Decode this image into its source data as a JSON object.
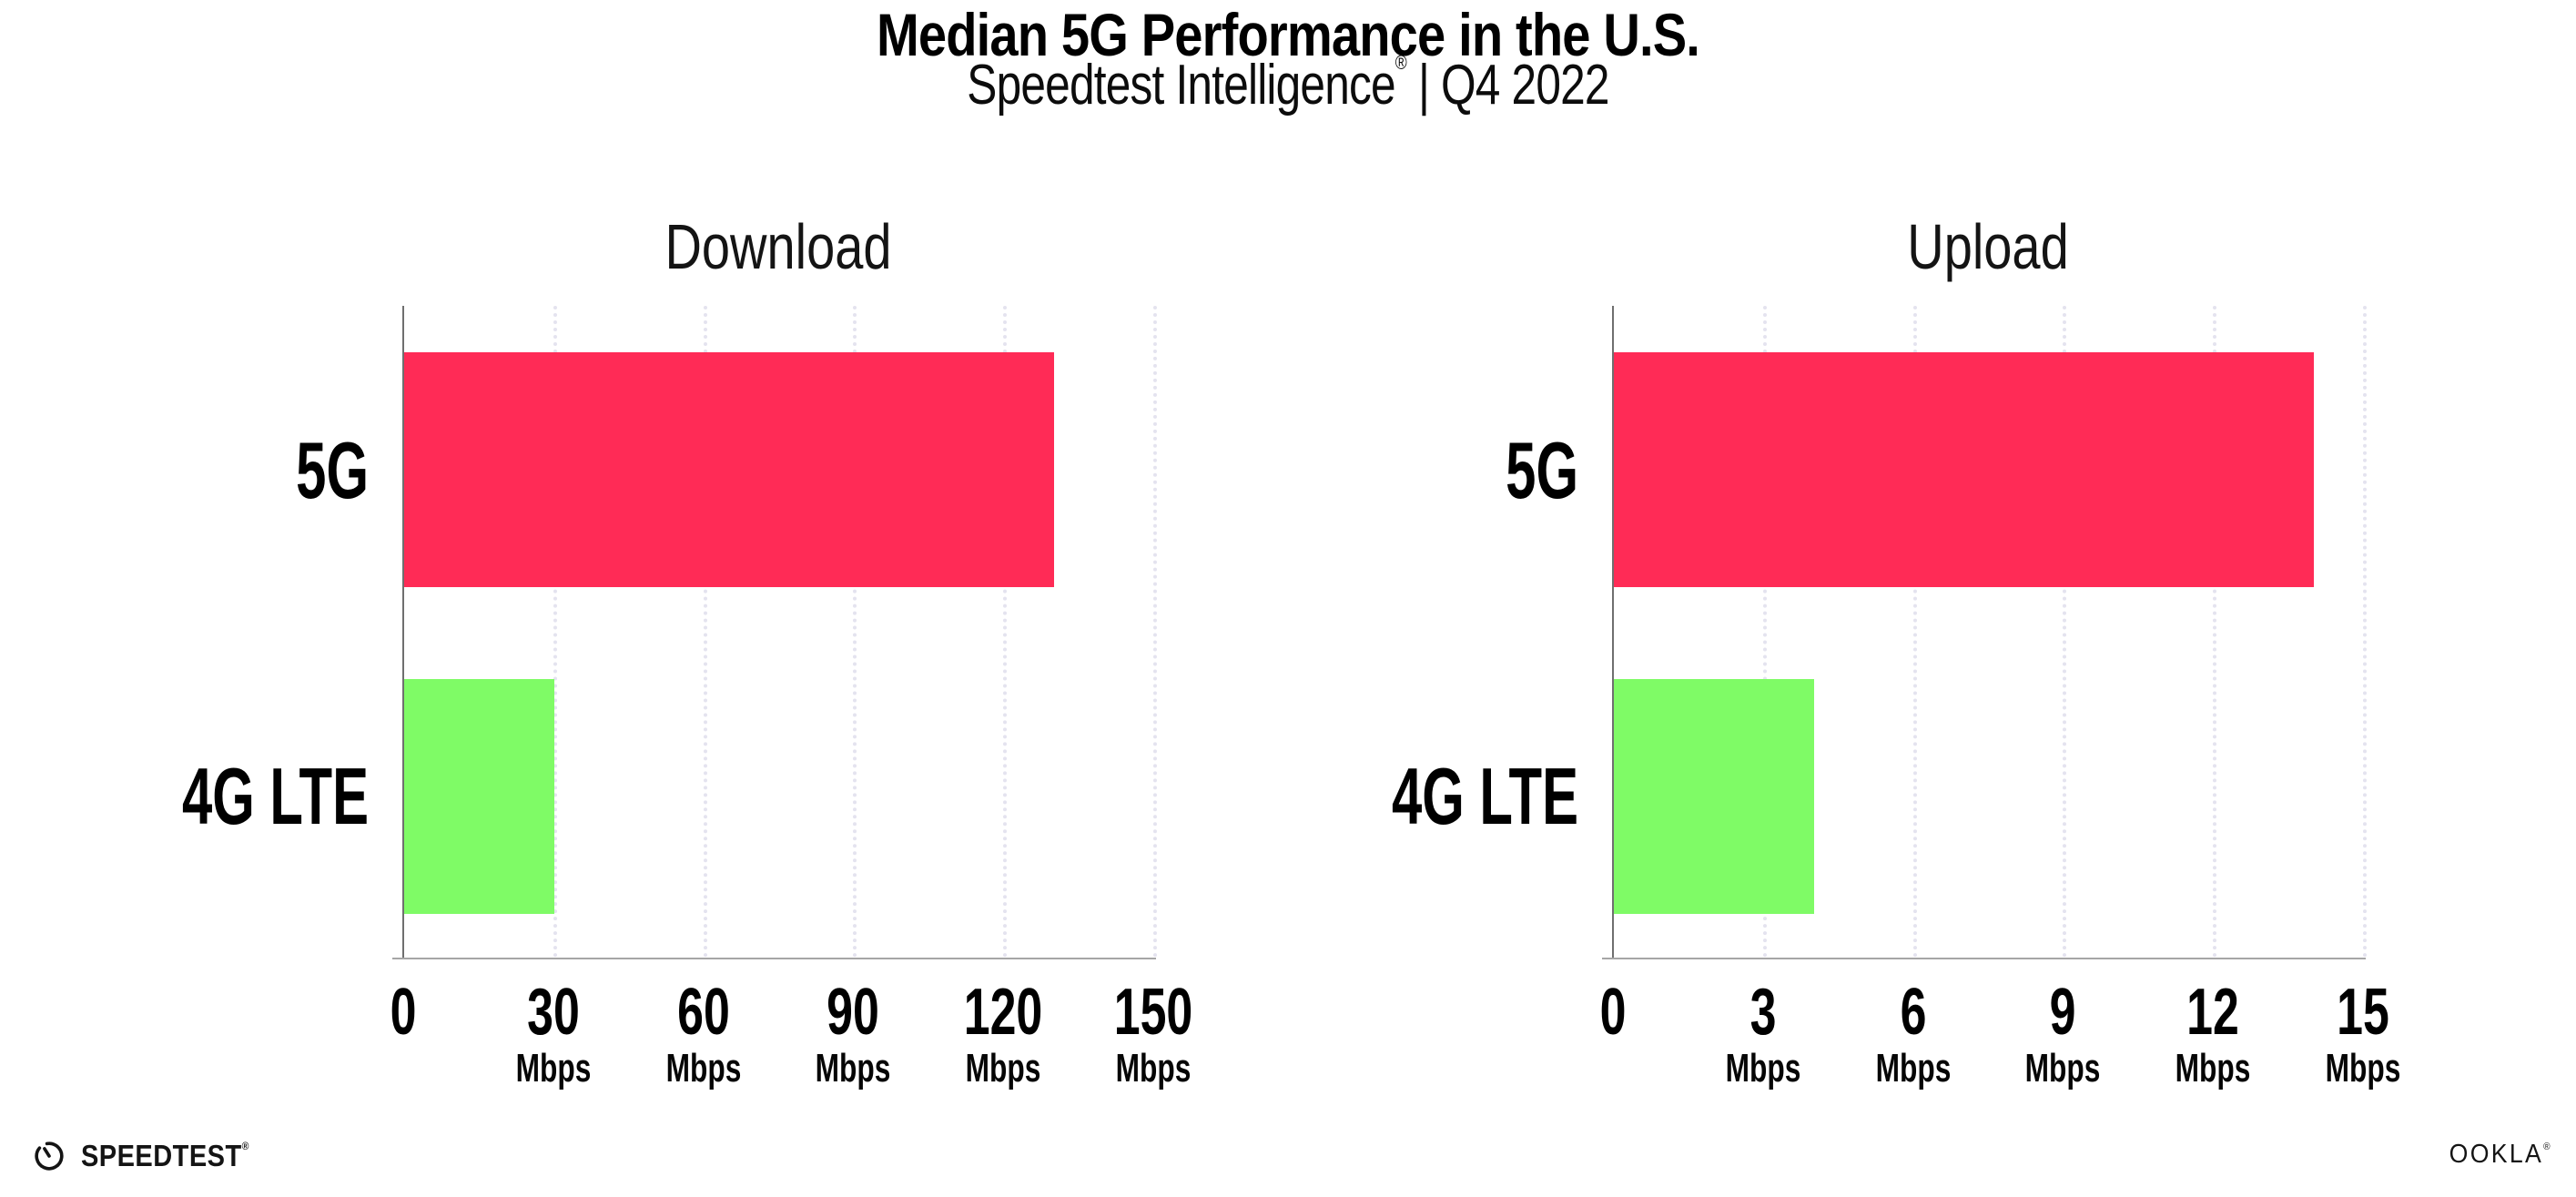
{
  "header": {
    "title": "Median 5G Performance in the U.S.",
    "subtitle_brand": "Speedtest Intelligence",
    "subtitle_reg": "®",
    "subtitle_rest": " | Q4 2022"
  },
  "chart_data": [
    {
      "type": "bar",
      "orientation": "horizontal",
      "title": "Download",
      "categories": [
        "5G",
        "4G LTE"
      ],
      "values": [
        130,
        30
      ],
      "unit": "Mbps",
      "xlim": [
        0,
        150
      ],
      "xticks": [
        0,
        30,
        60,
        90,
        120,
        150
      ],
      "bar_colors": [
        "#FF2B56",
        "#7FFB66"
      ],
      "grid": "dotted-vertical",
      "legend": "none"
    },
    {
      "type": "bar",
      "orientation": "horizontal",
      "title": "Upload",
      "categories": [
        "5G",
        "4G LTE"
      ],
      "values": [
        14,
        4
      ],
      "unit": "Mbps",
      "xlim": [
        0,
        15
      ],
      "xticks": [
        0,
        3,
        6,
        9,
        12,
        15
      ],
      "bar_colors": [
        "#FF2B56",
        "#7FFB66"
      ],
      "grid": "dotted-vertical",
      "legend": "none"
    }
  ],
  "footer": {
    "speedtest_label": "SPEEDTEST",
    "speedtest_reg": "®",
    "ookla_label": "OOKLA",
    "ookla_reg": "®"
  },
  "colors": {
    "bar_5g": "#FF2B56",
    "bar_4g_lte": "#7FFB66",
    "gridline": "#E4E3EF",
    "axis": "#A6A6A6",
    "text": "#000000",
    "background": "#FFFFFF"
  }
}
